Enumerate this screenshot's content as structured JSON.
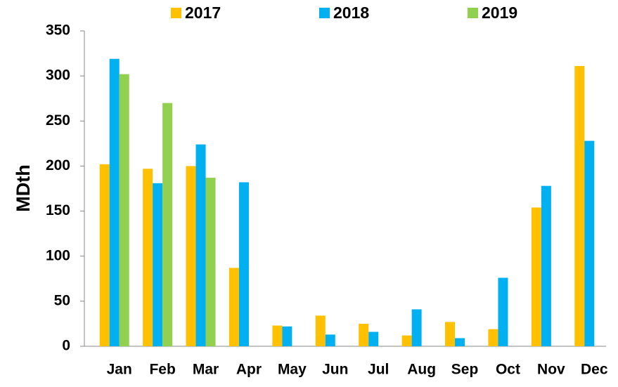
{
  "chart_data": {
    "type": "bar",
    "y_label": "MDth",
    "categories": [
      "Jan",
      "Feb",
      "Mar",
      "Apr",
      "May",
      "Jun",
      "Jul",
      "Aug",
      "Sep",
      "Oct",
      "Nov",
      "Dec"
    ],
    "series": [
      {
        "name": "2017",
        "color": "#ffc000",
        "values": [
          202,
          197,
          200,
          87,
          23,
          34,
          25,
          12,
          27,
          19,
          154,
          311
        ]
      },
      {
        "name": "2018",
        "color": "#00b0f0",
        "values": [
          319,
          181,
          224,
          182,
          22,
          13,
          16,
          41,
          9,
          76,
          178,
          228
        ]
      },
      {
        "name": "2019",
        "color": "#92d050",
        "values": [
          302,
          270,
          187,
          null,
          null,
          null,
          null,
          null,
          null,
          null,
          null,
          null
        ]
      }
    ],
    "ylim": [
      0,
      350
    ],
    "yticks": [
      0,
      50,
      100,
      150,
      200,
      250,
      300,
      350
    ],
    "grid": false,
    "legend": "top"
  }
}
